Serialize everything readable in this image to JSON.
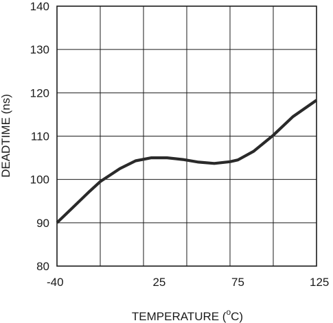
{
  "chart_data": {
    "type": "line",
    "xlabel_main": "TEMPERATURE (",
    "xlabel_sup": "o",
    "xlabel_tail": "C)",
    "ylabel": "DEADTIME (ns)",
    "xlim": [
      -40,
      125
    ],
    "ylim": [
      80,
      140
    ],
    "x_tick_values": [
      -40,
      -12.5,
      15,
      42.5,
      70,
      97.5,
      125
    ],
    "x_tick_labels": [
      {
        "value": -40,
        "label": "-40"
      },
      {
        "value": 25,
        "label": "25"
      },
      {
        "value": 75,
        "label": "75"
      },
      {
        "value": 125,
        "label": "125"
      }
    ],
    "y_ticks": [
      80,
      90,
      100,
      110,
      120,
      130,
      140
    ],
    "y_tick_labels": [
      "80",
      "90",
      "100",
      "110",
      "120",
      "130",
      "140"
    ],
    "grid": true,
    "series": [
      {
        "color": "#2a2a2a",
        "x": [
          -40,
          -30,
          -20,
          -12.5,
          0,
          10,
          20,
          30,
          40,
          50,
          60,
          70,
          75,
          85,
          97.5,
          110,
          125
        ],
        "y": [
          90,
          93.5,
          97,
          99.5,
          102.5,
          104.3,
          105,
          105,
          104.6,
          104,
          103.7,
          104.1,
          104.5,
          106.5,
          110.2,
          114.5,
          118.3
        ]
      }
    ]
  }
}
